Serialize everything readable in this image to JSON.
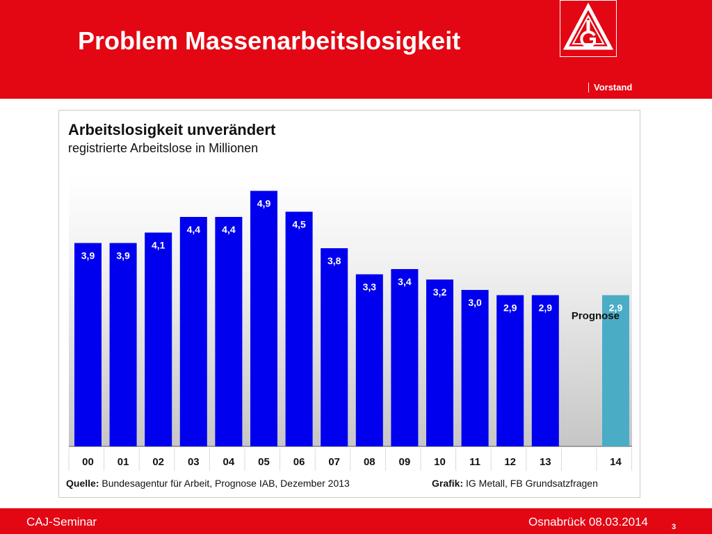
{
  "slide": {
    "title": "Problem Massenarbeitslosigkeit",
    "org_label": "Vorstand",
    "footer_left": "CAJ-Seminar",
    "footer_right": "Osnabrück 08.03.2014",
    "page_number": "3",
    "logo": "IG Metall logo"
  },
  "source": {
    "label": "Quelle:",
    "text": "Bundesagentur für Arbeit, Prognose IAB, Dezember 2013"
  },
  "credit": {
    "label": "Grafik:",
    "text": "IG Metall,  FB Grundsatzfragen"
  },
  "colors": {
    "brand_red": "#e30613",
    "bar": "#0000ee",
    "forecast_bar": "#4bacc6"
  },
  "chart_data": {
    "type": "bar",
    "title": "Arbeitslosigkeit unverändert",
    "subtitle": "registrierte Arbeitslose in Millionen",
    "categories": [
      "00",
      "01",
      "02",
      "03",
      "04",
      "05",
      "06",
      "07",
      "08",
      "09",
      "10",
      "11",
      "12",
      "13",
      "14"
    ],
    "values": [
      3.9,
      3.9,
      4.1,
      4.4,
      4.4,
      4.9,
      4.5,
      3.8,
      3.3,
      3.4,
      3.2,
      3.0,
      2.9,
      2.9,
      2.9
    ],
    "value_labels": [
      "3,9",
      "3,9",
      "4,1",
      "4,4",
      "4,4",
      "4,9",
      "4,5",
      "3,8",
      "3,3",
      "3,4",
      "3,2",
      "3,0",
      "2,9",
      "2,9",
      "2,9"
    ],
    "forecast_category": "14",
    "forecast_label": "Prognose",
    "ylim": [
      0,
      5.2
    ],
    "grid": false,
    "legend": "none"
  }
}
